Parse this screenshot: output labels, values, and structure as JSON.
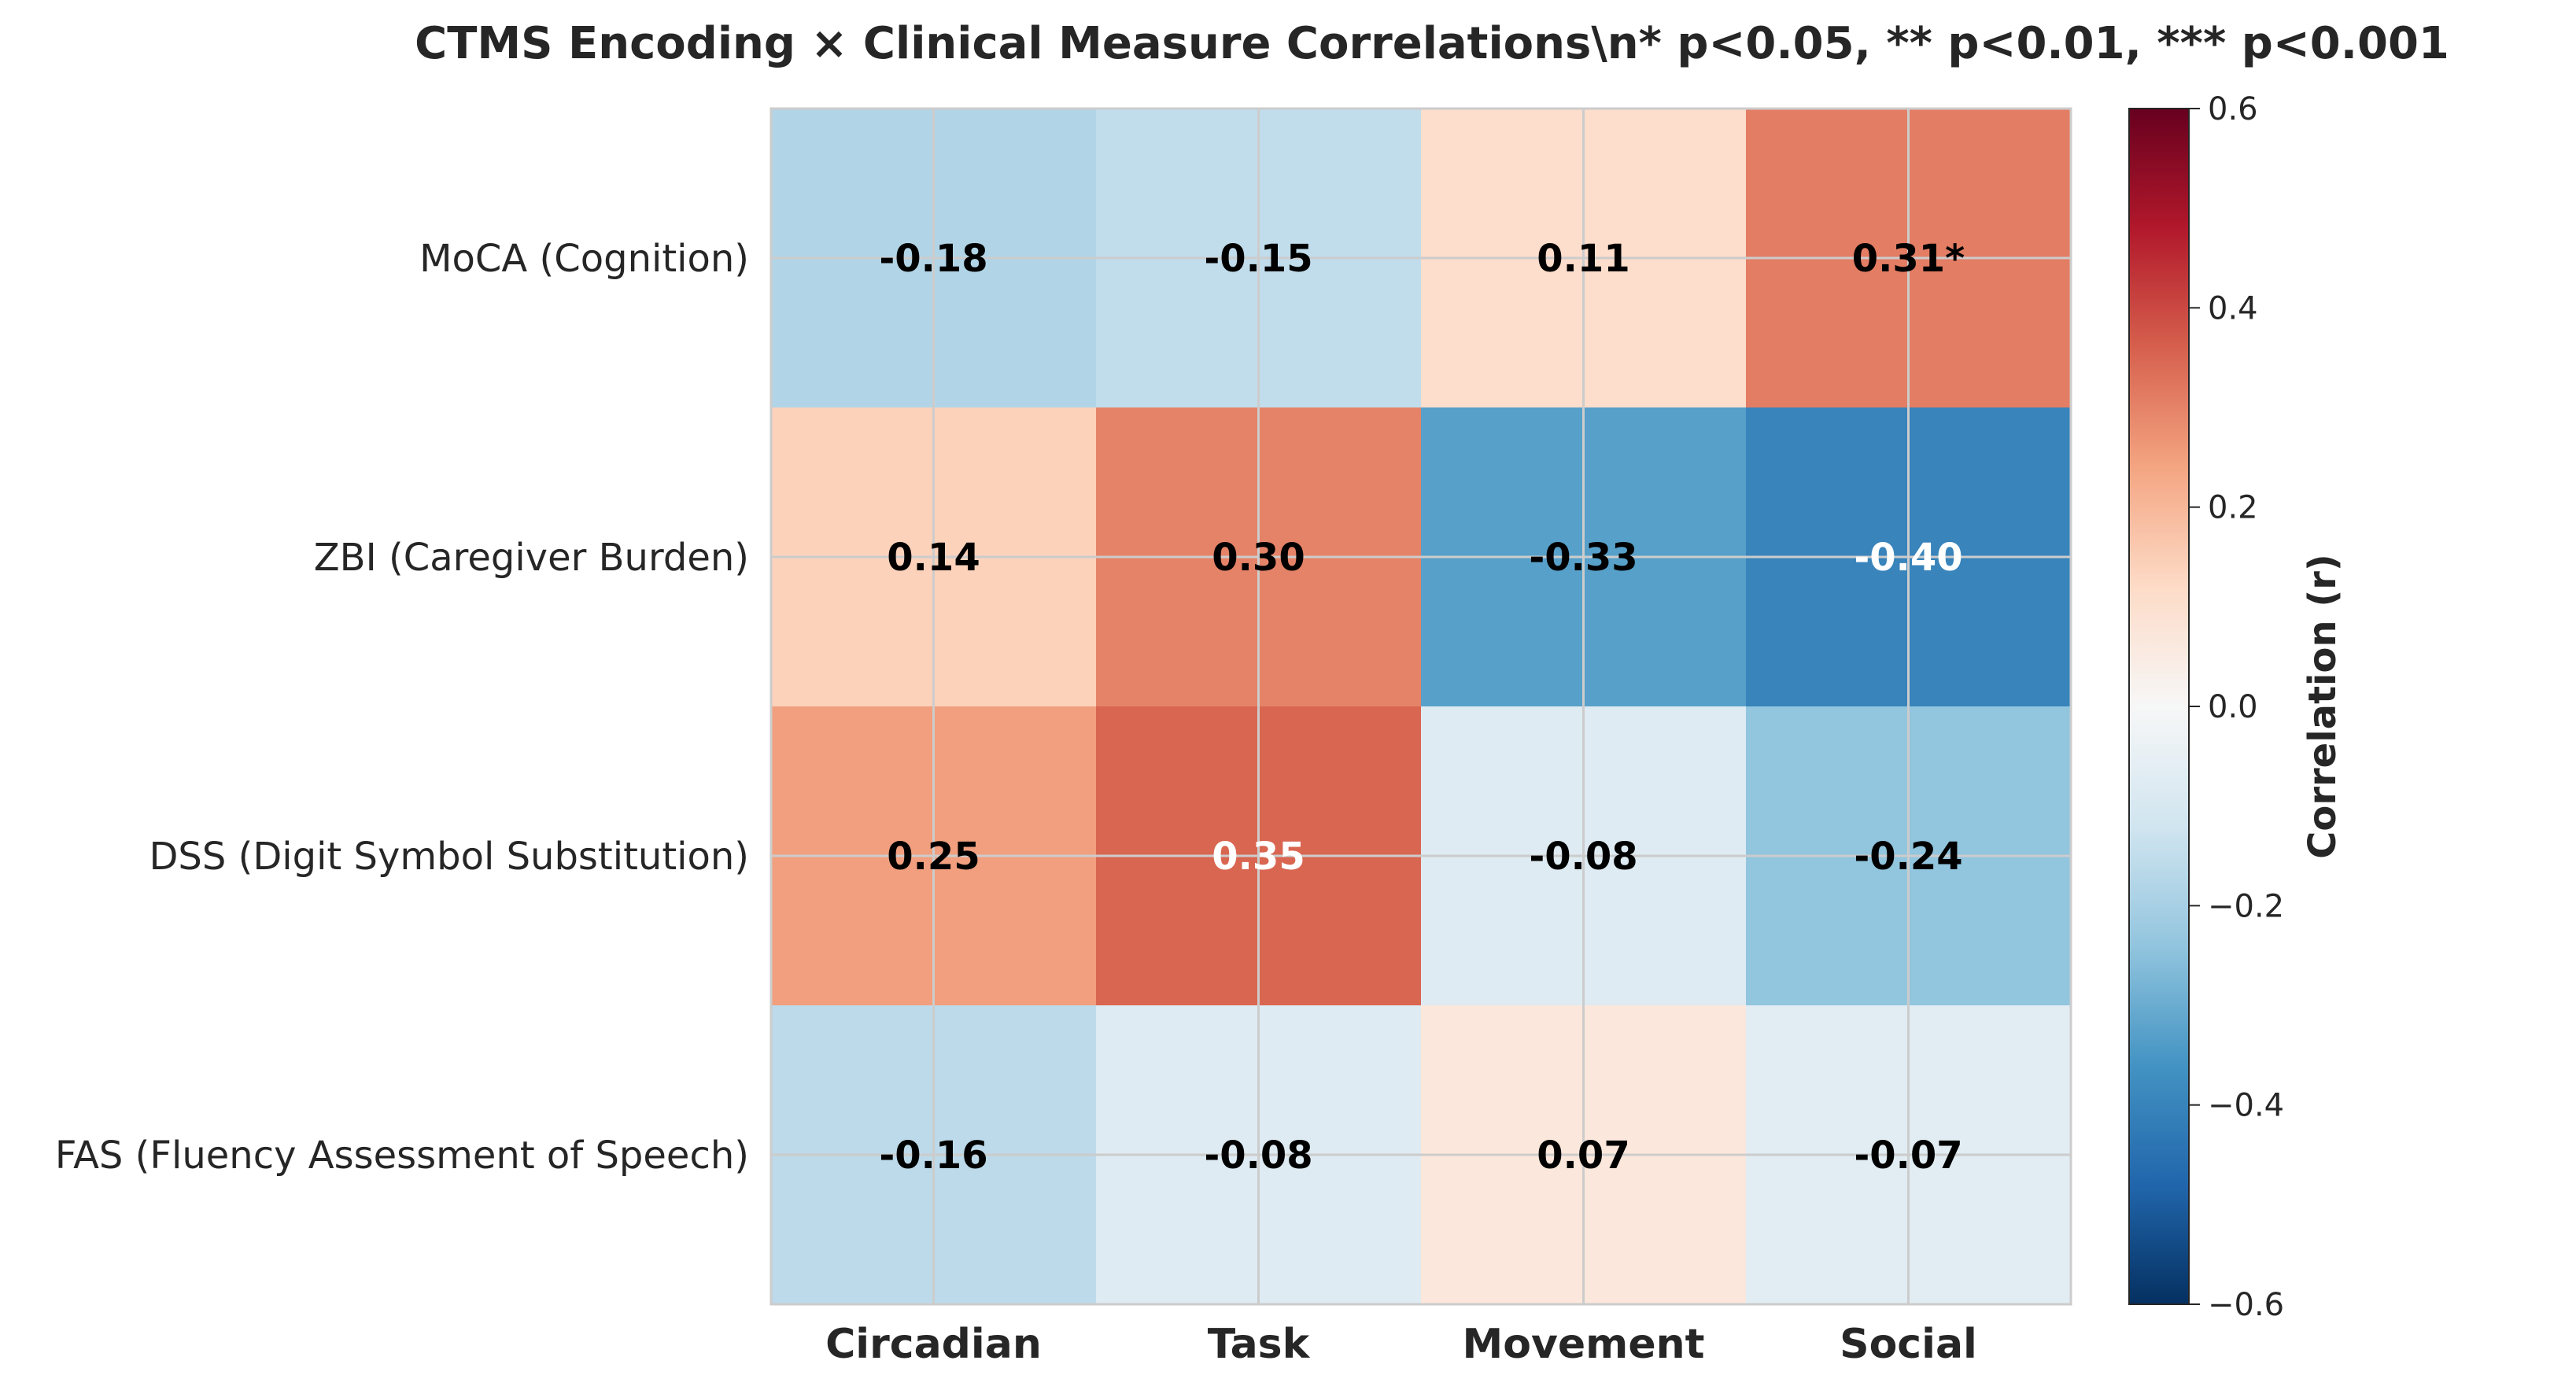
{
  "chart_data": {
    "type": "heatmap",
    "title": "CTMS Encoding × Clinical Measure Correlations\\n* p<0.05, ** p<0.01, *** p<0.001",
    "columns": [
      "Circadian",
      "Task",
      "Movement",
      "Social"
    ],
    "rows": [
      "MoCA (Cognition)",
      "ZBI (Caregiver Burden)",
      "DSS (Digit Symbol Substitution)",
      "FAS (Fluency Assessment of Speech)"
    ],
    "values": [
      [
        -0.18,
        -0.15,
        0.11,
        0.31
      ],
      [
        0.14,
        0.3,
        -0.33,
        -0.4
      ],
      [
        0.25,
        0.35,
        -0.08,
        -0.24
      ],
      [
        -0.16,
        -0.08,
        0.07,
        -0.07
      ]
    ],
    "annotations": [
      [
        "-0.18",
        "-0.15",
        "0.11",
        "0.31*"
      ],
      [
        "0.14",
        "0.30",
        "-0.33",
        "-0.40"
      ],
      [
        "0.25",
        "0.35",
        "-0.08",
        "-0.24"
      ],
      [
        "-0.16",
        "-0.08",
        "0.07",
        "-0.07"
      ]
    ],
    "annotation_colors": [
      [
        "#000000",
        "#000000",
        "#000000",
        "#000000"
      ],
      [
        "#000000",
        "#000000",
        "#000000",
        "#ffffff"
      ],
      [
        "#000000",
        "#ffffff",
        "#000000",
        "#000000"
      ],
      [
        "#000000",
        "#000000",
        "#000000",
        "#000000"
      ]
    ],
    "colormap": "RdBu_r",
    "vmin": -0.6,
    "vmax": 0.6,
    "colorbar": {
      "label": "Correlation (r)",
      "ticks": [
        0.6,
        0.4,
        0.2,
        0.0,
        -0.2,
        -0.4,
        -0.6
      ],
      "tick_labels": [
        "0.6",
        "0.4",
        "0.2",
        "0.0",
        "−0.2",
        "−0.4",
        "−0.6"
      ]
    },
    "grid": true
  }
}
